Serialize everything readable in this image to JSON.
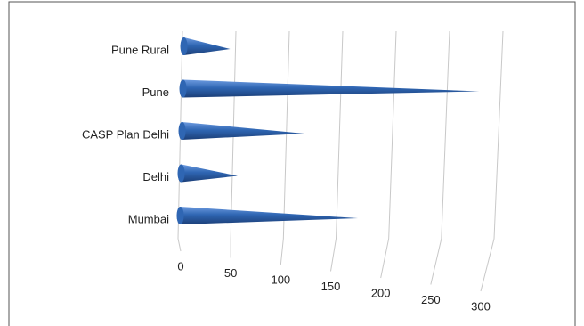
{
  "chart_data": {
    "type": "cone-bar",
    "categories": [
      "Pune Rural",
      "Pune",
      "CASP Plan Delhi",
      "Delhi",
      "Mumbai"
    ],
    "values": [
      45,
      280,
      117,
      55,
      170
    ],
    "color": "#2f66b3",
    "xlim": [
      0,
      300
    ],
    "xticks": [
      0,
      50,
      100,
      150,
      200,
      250,
      300
    ],
    "grid": true
  }
}
